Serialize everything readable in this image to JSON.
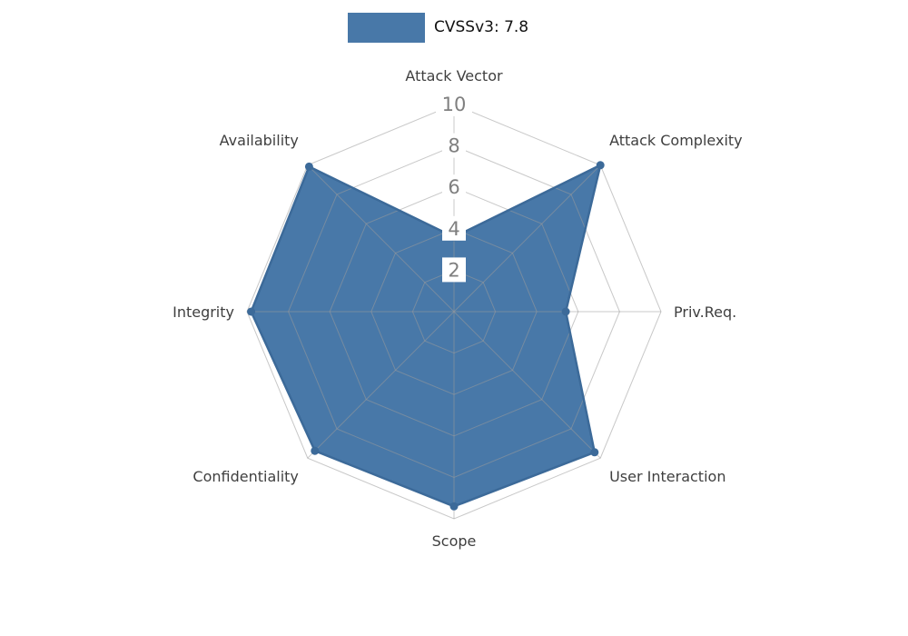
{
  "legend": {
    "label": "CVSSv3: 7.8"
  },
  "chart_data": {
    "type": "radar",
    "title": "",
    "categories": [
      "Attack Vector",
      "Attack Complexity",
      "Priv.Req.",
      "User Interaction",
      "Scope",
      "Confidentiality",
      "Integrity",
      "Availability"
    ],
    "series": [
      {
        "name": "CVSSv3: 7.8",
        "values": [
          3.6,
          10,
          5.4,
          9.6,
          9.4,
          9.5,
          9.8,
          9.9
        ]
      }
    ],
    "ticks": [
      2,
      4,
      6,
      8,
      10
    ],
    "rlim": [
      0,
      10
    ],
    "grid": true,
    "legend_position": "top-center",
    "colors": {
      "fill": "#4878a8",
      "edge": "#3c6a99",
      "grid": "#9a9a9a",
      "tick_text": "#7f7f7f",
      "tick_bg": "#ffffff",
      "label_text": "#3f3f3f"
    }
  }
}
